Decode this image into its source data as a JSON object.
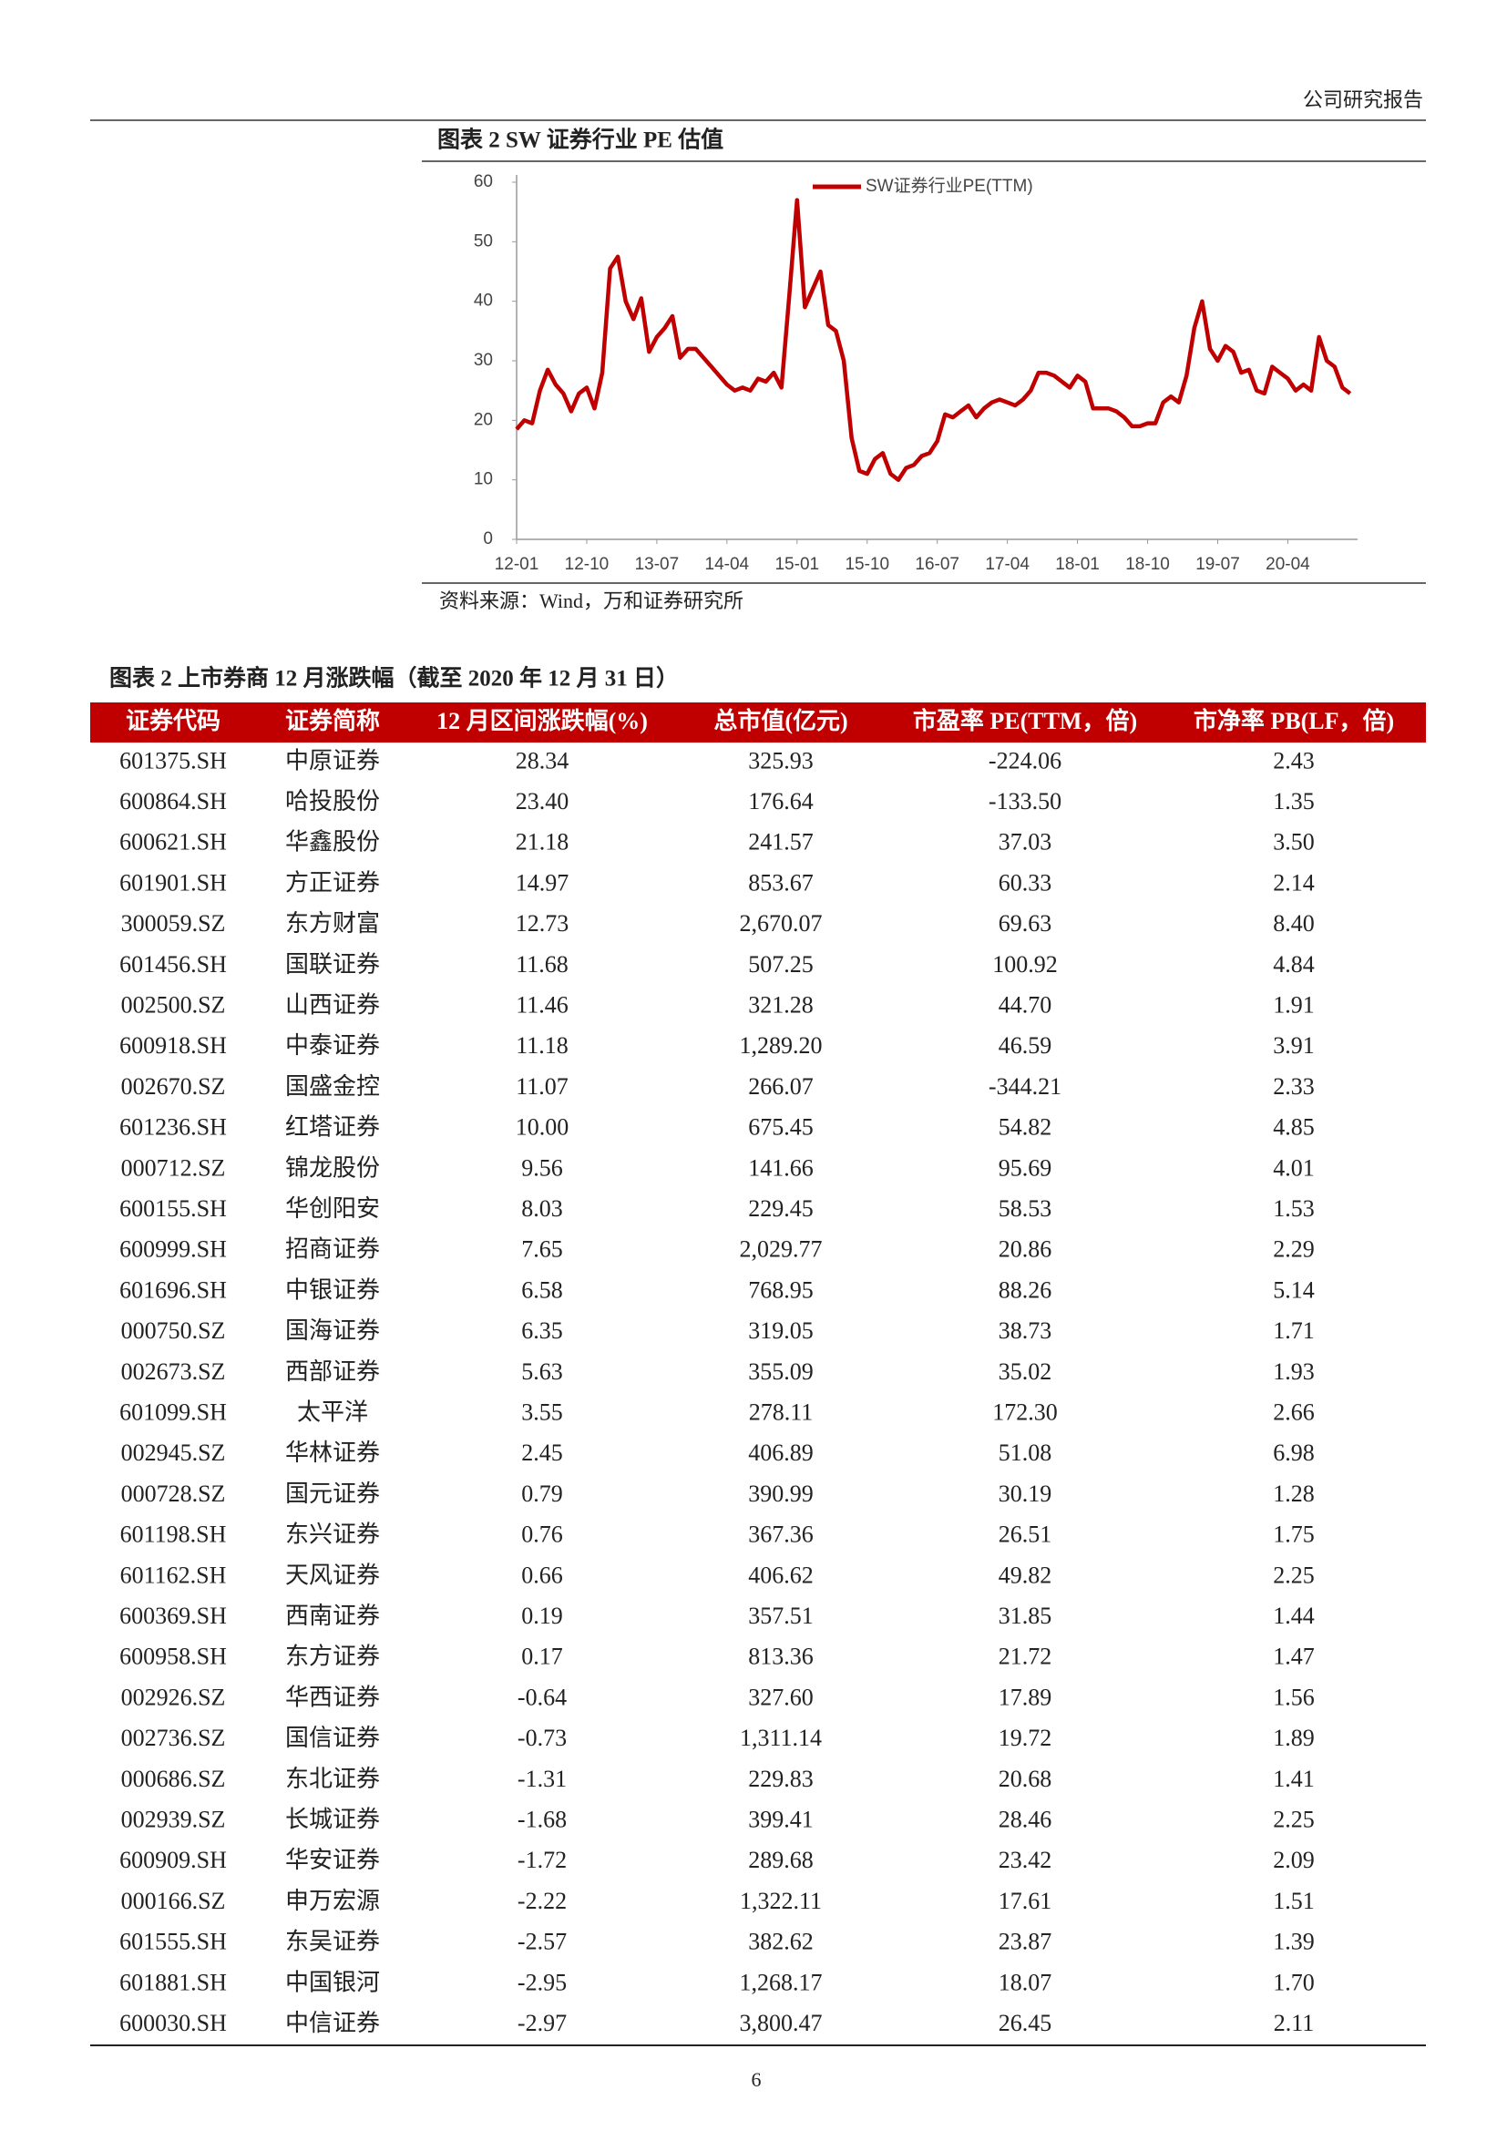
{
  "header": {
    "title": "公司研究报告"
  },
  "chart_data": {
    "type": "line",
    "title": "图表 2  SW 证券行业 PE 估值",
    "source": "资料来源：Wind，万和证券研究所",
    "categories": [
      "12-01",
      null,
      null,
      null,
      null,
      null,
      null,
      null,
      null,
      "12-10",
      null,
      null,
      null,
      null,
      null,
      null,
      null,
      null,
      "13-07",
      null,
      null,
      null,
      null,
      null,
      null,
      null,
      null,
      "14-04",
      null,
      null,
      null,
      null,
      null,
      null,
      null,
      null,
      "15-01",
      null,
      null,
      null,
      null,
      null,
      null,
      null,
      null,
      "15-10",
      null,
      null,
      null,
      null,
      null,
      null,
      null,
      null,
      "16-07",
      null,
      null,
      null,
      null,
      null,
      null,
      null,
      null,
      "17-04",
      null,
      null,
      null,
      null,
      null,
      null,
      null,
      null,
      "18-01",
      null,
      null,
      null,
      null,
      null,
      null,
      null,
      null,
      "18-10",
      null,
      null,
      null,
      null,
      null,
      null,
      null,
      null,
      "19-07",
      null,
      null,
      null,
      null,
      null,
      null,
      null,
      null,
      "20-04",
      null,
      null,
      null,
      null,
      null,
      null,
      null,
      null
    ],
    "series": [
      {
        "name": "SW证券行业PE(TTM)",
        "color": "#c00000",
        "values": [
          18.5,
          20,
          19.5,
          25,
          28.5,
          26,
          24.5,
          21.5,
          24.5,
          25.5,
          22,
          28,
          45.5,
          47.5,
          40,
          37,
          40.5,
          31.5,
          34,
          35.5,
          37.5,
          30.5,
          32,
          32,
          30.5,
          29,
          27.5,
          26,
          25,
          25.5,
          25,
          27,
          26.5,
          28,
          25.5,
          41,
          57,
          39,
          42,
          45,
          36,
          35,
          30,
          17,
          11.5,
          11,
          13.5,
          14.5,
          11,
          10,
          12,
          12.5,
          14,
          14.5,
          16.5,
          21,
          20.5,
          21.5,
          22.5,
          20.5,
          22,
          23,
          23.5,
          23,
          22.5,
          23.5,
          25,
          28,
          28,
          27.5,
          26.5,
          25.5,
          27.5,
          26.5,
          22,
          22,
          22,
          21.5,
          20.5,
          19,
          19,
          19.5,
          19.5,
          23,
          24,
          23,
          27.5,
          35.5,
          40,
          32,
          30,
          32.5,
          31.5,
          28,
          28.5,
          25,
          24.5,
          29,
          28,
          27,
          25,
          26,
          25,
          34,
          30,
          29,
          25.5,
          24.5
        ]
      }
    ],
    "ylim": [
      0,
      60
    ],
    "yticks": [
      0,
      10,
      20,
      30,
      40,
      50,
      60
    ],
    "legend": "top-left"
  },
  "table": {
    "title": "图表 2  上市券商 12 月涨跌幅（截至 2020 年 12 月 31 日）",
    "header": [
      "证券代码",
      "证券简称",
      "12 月区间涨跌幅(%)",
      "总市值(亿元)",
      "市盈率 PE(TTM，倍)",
      "市净率 PB(LF，倍)"
    ],
    "rows": [
      [
        "601375.SH",
        "中原证券",
        "28.34",
        "325.93",
        "-224.06",
        "2.43"
      ],
      [
        "600864.SH",
        "哈投股份",
        "23.40",
        "176.64",
        "-133.50",
        "1.35"
      ],
      [
        "600621.SH",
        "华鑫股份",
        "21.18",
        "241.57",
        "37.03",
        "3.50"
      ],
      [
        "601901.SH",
        "方正证券",
        "14.97",
        "853.67",
        "60.33",
        "2.14"
      ],
      [
        "300059.SZ",
        "东方财富",
        "12.73",
        "2,670.07",
        "69.63",
        "8.40"
      ],
      [
        "601456.SH",
        "国联证券",
        "11.68",
        "507.25",
        "100.92",
        "4.84"
      ],
      [
        "002500.SZ",
        "山西证券",
        "11.46",
        "321.28",
        "44.70",
        "1.91"
      ],
      [
        "600918.SH",
        "中泰证券",
        "11.18",
        "1,289.20",
        "46.59",
        "3.91"
      ],
      [
        "002670.SZ",
        "国盛金控",
        "11.07",
        "266.07",
        "-344.21",
        "2.33"
      ],
      [
        "601236.SH",
        "红塔证券",
        "10.00",
        "675.45",
        "54.82",
        "4.85"
      ],
      [
        "000712.SZ",
        "锦龙股份",
        "9.56",
        "141.66",
        "95.69",
        "4.01"
      ],
      [
        "600155.SH",
        "华创阳安",
        "8.03",
        "229.45",
        "58.53",
        "1.53"
      ],
      [
        "600999.SH",
        "招商证券",
        "7.65",
        "2,029.77",
        "20.86",
        "2.29"
      ],
      [
        "601696.SH",
        "中银证券",
        "6.58",
        "768.95",
        "88.26",
        "5.14"
      ],
      [
        "000750.SZ",
        "国海证券",
        "6.35",
        "319.05",
        "38.73",
        "1.71"
      ],
      [
        "002673.SZ",
        "西部证券",
        "5.63",
        "355.09",
        "35.02",
        "1.93"
      ],
      [
        "601099.SH",
        "太平洋",
        "3.55",
        "278.11",
        "172.30",
        "2.66"
      ],
      [
        "002945.SZ",
        "华林证券",
        "2.45",
        "406.89",
        "51.08",
        "6.98"
      ],
      [
        "000728.SZ",
        "国元证券",
        "0.79",
        "390.99",
        "30.19",
        "1.28"
      ],
      [
        "601198.SH",
        "东兴证券",
        "0.76",
        "367.36",
        "26.51",
        "1.75"
      ],
      [
        "601162.SH",
        "天风证券",
        "0.66",
        "406.62",
        "49.82",
        "2.25"
      ],
      [
        "600369.SH",
        "西南证券",
        "0.19",
        "357.51",
        "31.85",
        "1.44"
      ],
      [
        "600958.SH",
        "东方证券",
        "0.17",
        "813.36",
        "21.72",
        "1.47"
      ],
      [
        "002926.SZ",
        "华西证券",
        "-0.64",
        "327.60",
        "17.89",
        "1.56"
      ],
      [
        "002736.SZ",
        "国信证券",
        "-0.73",
        "1,311.14",
        "19.72",
        "1.89"
      ],
      [
        "000686.SZ",
        "东北证券",
        "-1.31",
        "229.83",
        "20.68",
        "1.41"
      ],
      [
        "002939.SZ",
        "长城证券",
        "-1.68",
        "399.41",
        "28.46",
        "2.25"
      ],
      [
        "600909.SH",
        "华安证券",
        "-1.72",
        "289.68",
        "23.42",
        "2.09"
      ],
      [
        "000166.SZ",
        "申万宏源",
        "-2.22",
        "1,322.11",
        "17.61",
        "1.51"
      ],
      [
        "601555.SH",
        "东吴证券",
        "-2.57",
        "382.62",
        "23.87",
        "1.39"
      ],
      [
        "601881.SH",
        "中国银河",
        "-2.95",
        "1,268.17",
        "18.07",
        "1.70"
      ],
      [
        "600030.SH",
        "中信证券",
        "-2.97",
        "3,800.47",
        "26.45",
        "2.11"
      ]
    ]
  },
  "page_number": "6"
}
